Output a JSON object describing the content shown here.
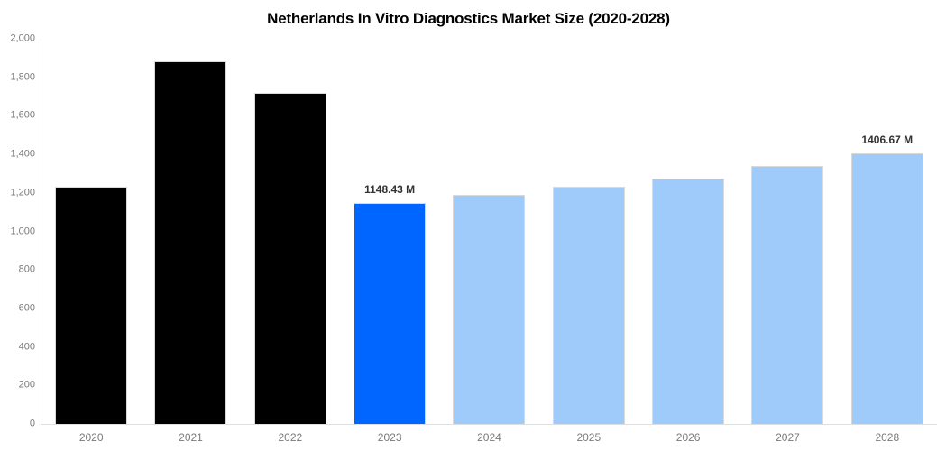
{
  "page": {
    "background": "#ffffff"
  },
  "chart_data": {
    "type": "bar",
    "title": "Netherlands In Vitro Diagnostics Market Size (2020-2028)",
    "unit": "M",
    "categories": [
      "2020",
      "2021",
      "2022",
      "2023",
      "2024",
      "2025",
      "2026",
      "2027",
      "2028"
    ],
    "values": [
      1230,
      1881,
      1717,
      1148.43,
      1190,
      1230,
      1276,
      1338,
      1406.67
    ],
    "bar_roles": [
      "historical",
      "historical",
      "historical",
      "highlight",
      "forecast",
      "forecast",
      "forecast",
      "forecast",
      "forecast"
    ],
    "data_labels": [
      "",
      "",
      "",
      "1148.43 M",
      "",
      "",
      "",
      "",
      "1406.67 M"
    ],
    "xlabel": "",
    "ylabel": "",
    "ylim": [
      0,
      2000
    ],
    "y_ticks": [
      {
        "value": 0,
        "label": "0"
      },
      {
        "value": 200,
        "label": "200"
      },
      {
        "value": 400,
        "label": "400"
      },
      {
        "value": 600,
        "label": "600"
      },
      {
        "value": 800,
        "label": "800"
      },
      {
        "value": 1000,
        "label": "1,000"
      },
      {
        "value": 1200,
        "label": "1,200"
      },
      {
        "value": 1400,
        "label": "1,400"
      },
      {
        "value": 1600,
        "label": "1,600"
      },
      {
        "value": 1800,
        "label": "1,800"
      },
      {
        "value": 2000,
        "label": "2,000"
      }
    ],
    "grid": false,
    "legend": false,
    "colors": {
      "historical": "#000000",
      "highlight": "#0066ff",
      "forecast": "#9ecbfa"
    },
    "axis_style": {
      "line_color": "#dcdcdc",
      "tick_text_color": "#7a7a7a",
      "data_label_color": "#333333"
    }
  }
}
